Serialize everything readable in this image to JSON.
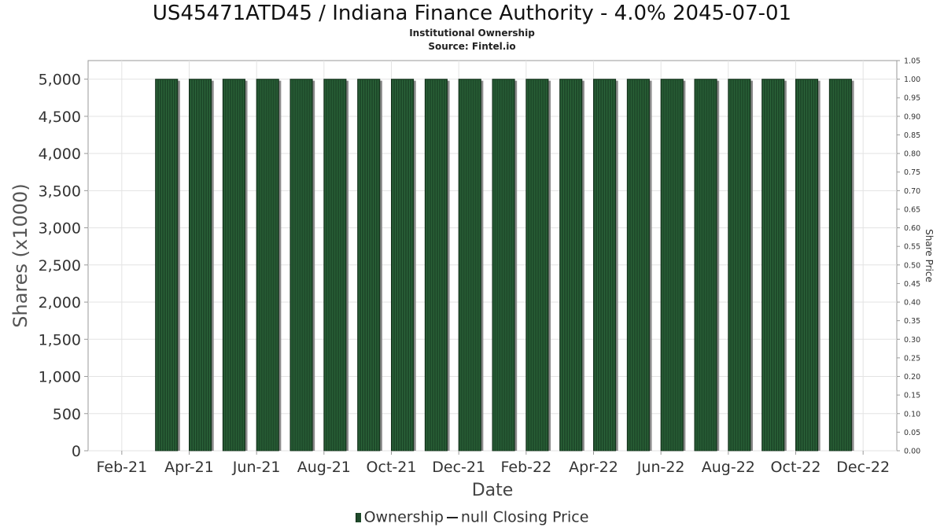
{
  "chart_data": {
    "type": "bar",
    "title": "US45471ATD45 / Indiana Finance Authority - 4.0% 2045-07-01",
    "subtitle1": "Institutional Ownership",
    "subtitle2": "Source: Fintel.io",
    "xlabel": "Date",
    "ylabel": "Shares (x1000)",
    "y2label": "Share Price",
    "ylim": [
      0,
      5250
    ],
    "y2lim": [
      0,
      1.05
    ],
    "y_ticks": [
      0,
      500,
      1000,
      1500,
      2000,
      2500,
      3000,
      3500,
      4000,
      4500,
      5000
    ],
    "y_tick_labels": [
      "0",
      "500",
      "1,000",
      "1,500",
      "2,000",
      "2,500",
      "3,000",
      "3,500",
      "4,000",
      "4,500",
      "5,000"
    ],
    "y2_ticks": [
      0,
      0.05,
      0.1,
      0.15,
      0.2,
      0.25,
      0.3,
      0.35,
      0.4,
      0.45,
      0.5,
      0.55,
      0.6,
      0.65,
      0.7,
      0.75,
      0.8,
      0.85,
      0.9,
      0.95,
      1.0,
      1.05
    ],
    "y2_tick_labels": [
      "0.00",
      "0.05",
      "0.10",
      "0.15",
      "0.20",
      "0.25",
      "0.30",
      "0.35",
      "0.40",
      "0.45",
      "0.50",
      "0.55",
      "0.60",
      "0.65",
      "0.70",
      "0.75",
      "0.80",
      "0.85",
      "0.90",
      "0.95",
      "1.00",
      "1.05"
    ],
    "x_ticks": [
      "2021-02",
      "2021-04",
      "2021-06",
      "2021-08",
      "2021-10",
      "2021-12",
      "2022-02",
      "2022-04",
      "2022-06",
      "2022-08",
      "2022-10",
      "2022-12"
    ],
    "x_tick_labels": [
      "Feb-21",
      "Apr-21",
      "Jun-21",
      "Aug-21",
      "Oct-21",
      "Dec-21",
      "Feb-22",
      "Apr-22",
      "Jun-22",
      "Aug-22",
      "Oct-22",
      "Dec-22"
    ],
    "x_range": [
      "2021-01",
      "2023-01"
    ],
    "grid": true,
    "legend_position": "bottom-center",
    "series": [
      {
        "name": "Ownership",
        "type": "bar",
        "x": [
          "2021-03",
          "2021-04",
          "2021-05",
          "2021-06",
          "2021-07",
          "2021-08",
          "2021-09",
          "2021-10",
          "2021-11",
          "2021-12",
          "2022-01",
          "2022-02",
          "2022-03",
          "2022-04",
          "2022-05",
          "2022-06",
          "2022-07",
          "2022-08",
          "2022-09",
          "2022-10",
          "2022-11"
        ],
        "values": [
          5000,
          5000,
          5000,
          5000,
          5000,
          5000,
          5000,
          5000,
          5000,
          5000,
          5000,
          5000,
          5000,
          5000,
          5000,
          5000,
          5000,
          5000,
          5000,
          5000,
          5000
        ]
      },
      {
        "name": "null Closing Price",
        "type": "line",
        "values": []
      }
    ],
    "colors": {
      "bar_fill": "#1e4a2a",
      "bar_stripe": "#2f6b3e",
      "bar_shadow": "#8a8a8a",
      "grid": "#e3e3e3",
      "axis": "#999999"
    }
  },
  "legend": {
    "ownership_label": "Ownership",
    "price_label": "null Closing Price"
  }
}
